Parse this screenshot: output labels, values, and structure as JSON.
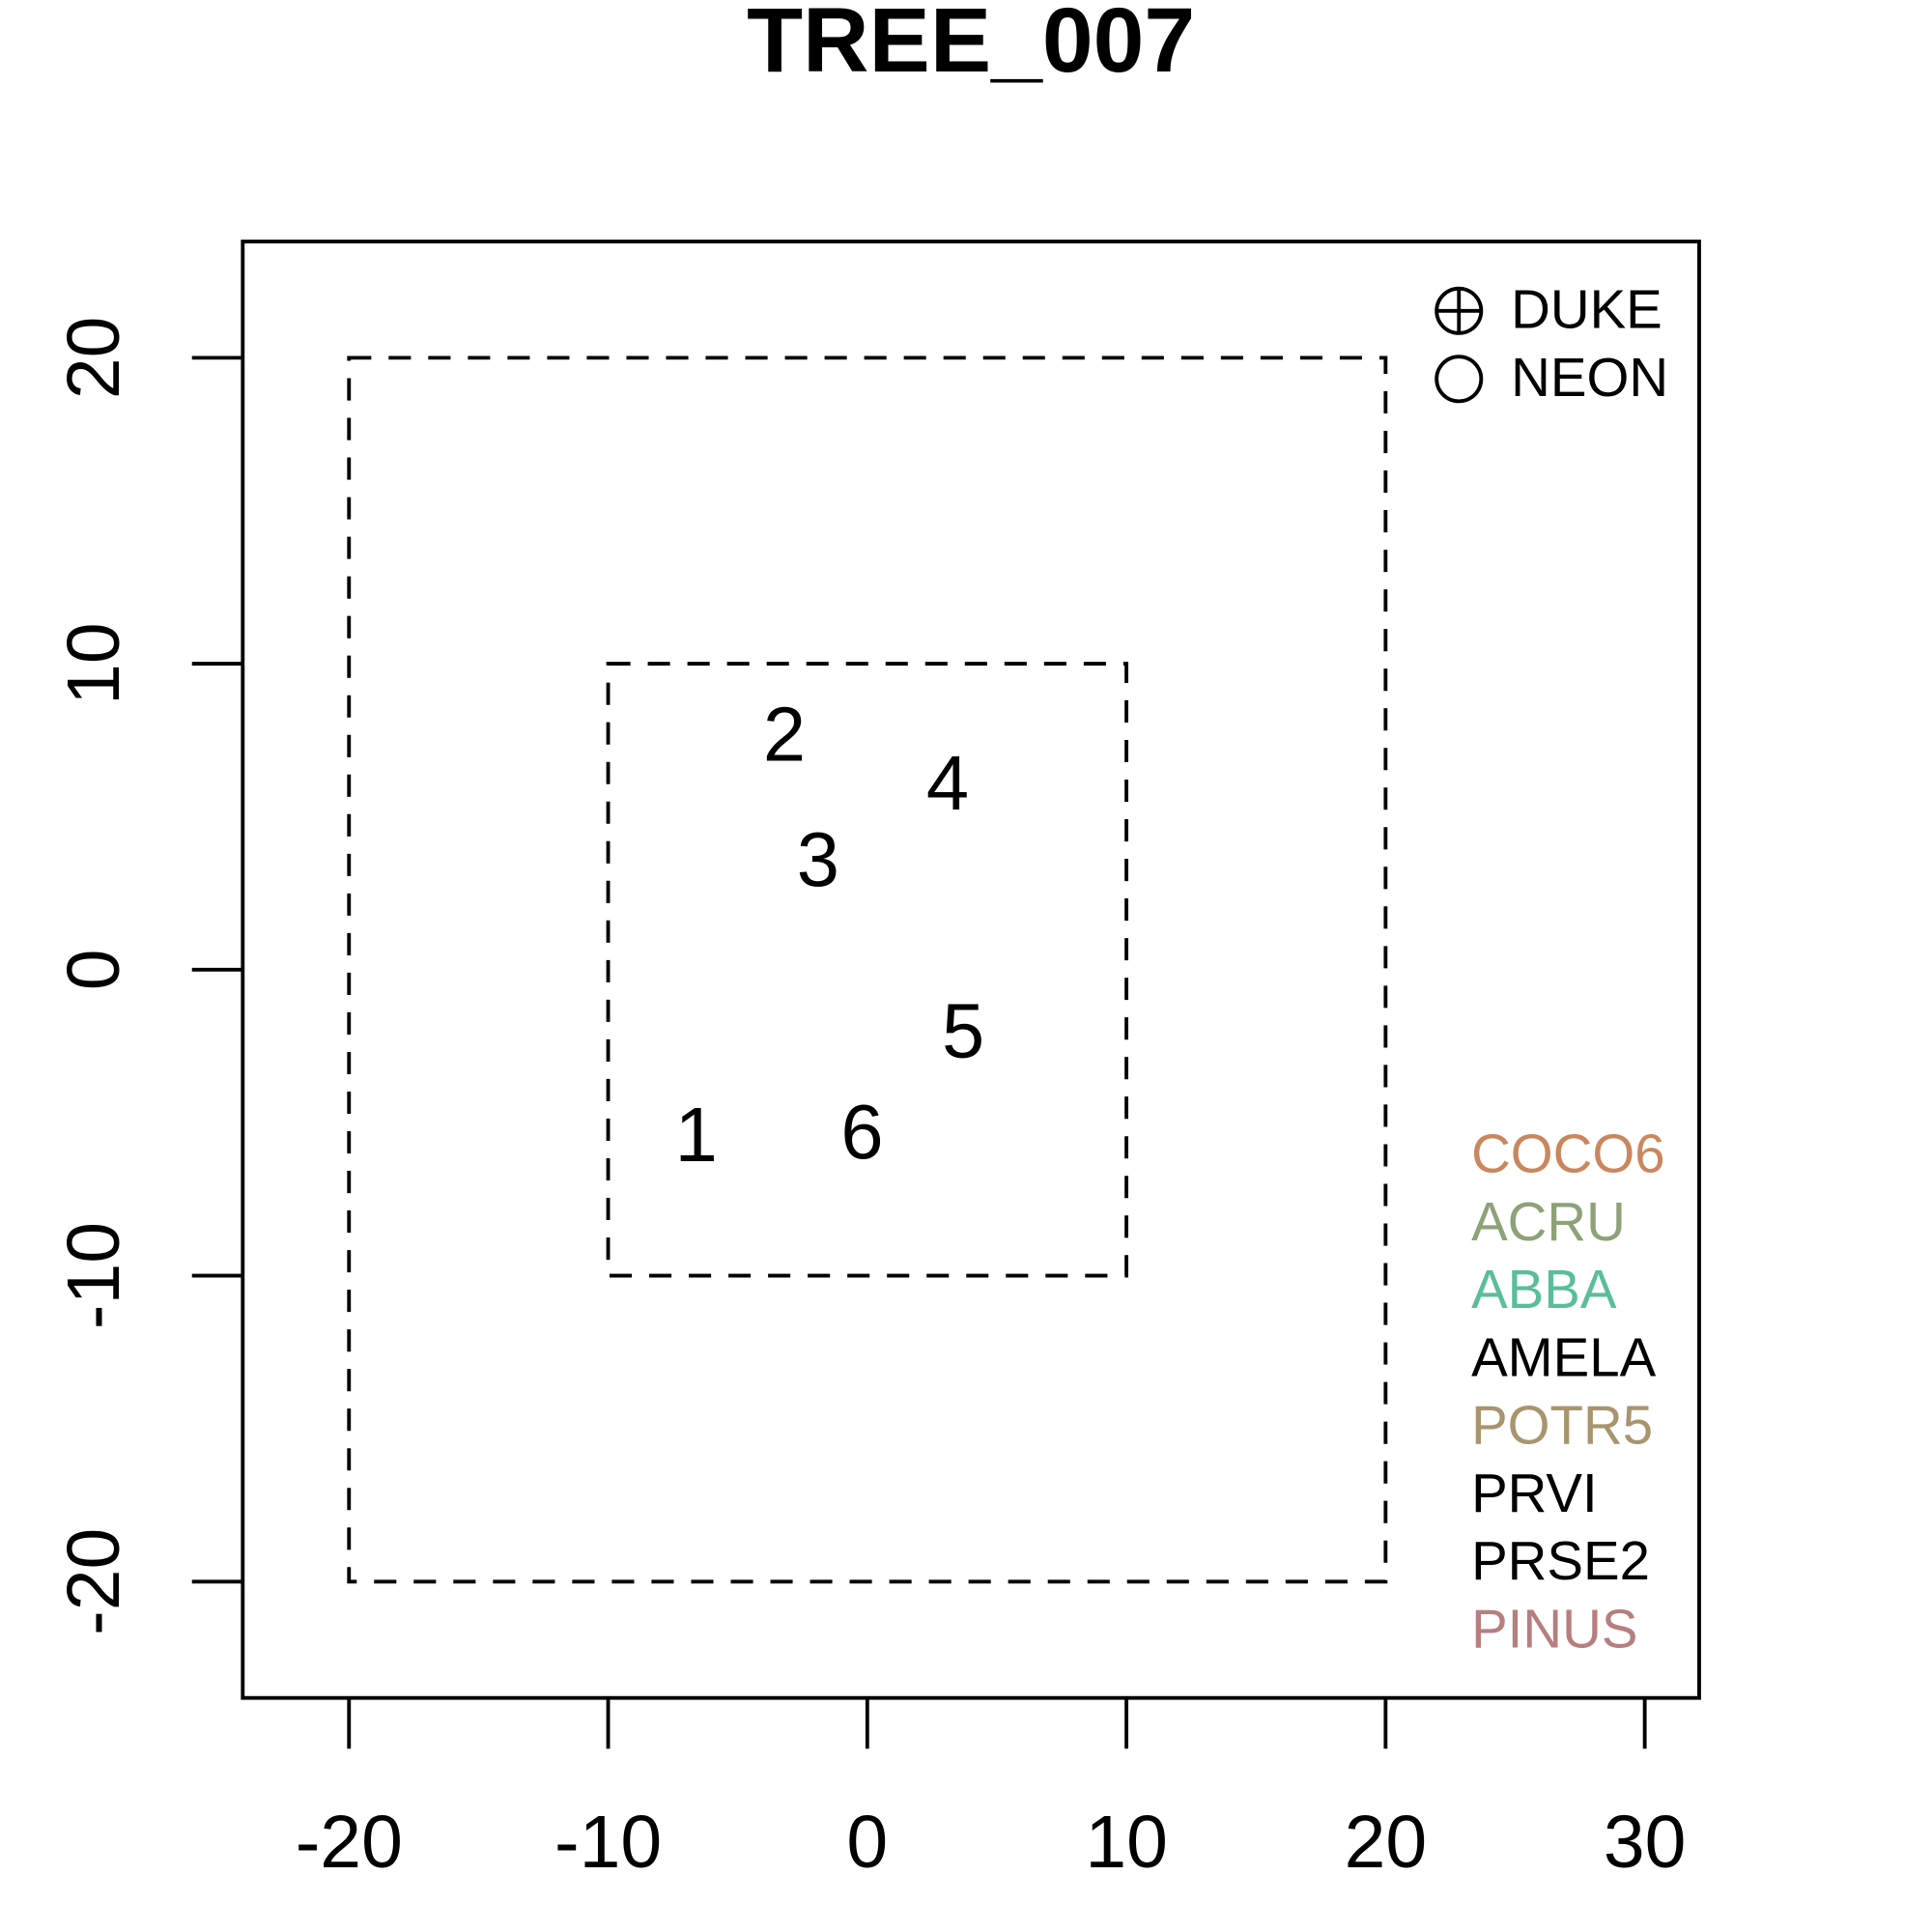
{
  "chart_data": {
    "type": "scatter",
    "title": "TREE_007",
    "x": [
      -6.6,
      -3.2,
      -1.9,
      3.1,
      3.7,
      -0.2
    ],
    "y": [
      -5.6,
      7.5,
      3.4,
      5.9,
      -2.2,
      -5.5
    ],
    "point_labels": [
      "1",
      "2",
      "3",
      "4",
      "5",
      "6"
    ],
    "xlim": [
      -24.1,
      32.1
    ],
    "ylim": [
      -23.8,
      23.8
    ],
    "xticks": [
      -20,
      -10,
      0,
      10,
      20,
      30
    ],
    "yticks": [
      -20,
      -10,
      0,
      10,
      20
    ],
    "regions": [
      {
        "x": [
          -20,
          20
        ],
        "y": [
          -20,
          20
        ]
      },
      {
        "x": [
          -10,
          10
        ],
        "y": [
          -10,
          10
        ]
      }
    ],
    "symbol_legend": [
      "DUKE",
      "NEON"
    ],
    "species": [
      {
        "name": "COCO6",
        "color": "#c9875f"
      },
      {
        "name": "ACRU",
        "color": "#8ea277"
      },
      {
        "name": "ABBA",
        "color": "#5bbd9a"
      },
      {
        "name": "AMELA",
        "color": "#000000"
      },
      {
        "name": "POTR5",
        "color": "#a8956f"
      },
      {
        "name": "PRVI",
        "color": "#000000"
      },
      {
        "name": "PRSE2",
        "color": "#000000"
      },
      {
        "name": "PINUS",
        "color": "#b67f7f"
      }
    ]
  }
}
